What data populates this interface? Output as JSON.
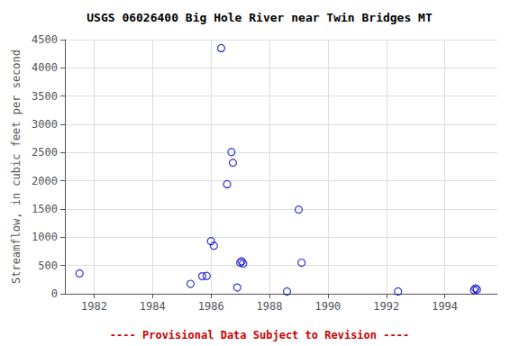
{
  "chart_data": {
    "type": "scatter",
    "title": "USGS 06026400 Big Hole River near Twin Bridges MT",
    "ylabel": "Streamflow, in cubic feet per second",
    "annotations": [
      {
        "text": "---- Provisional Data Subject to Revision ----",
        "color": "#cc0000"
      }
    ],
    "x": [
      1981.5,
      1985.3,
      1985.7,
      1985.85,
      1986.0,
      1986.1,
      1986.35,
      1986.55,
      1986.7,
      1986.75,
      1986.9,
      1987.0,
      1987.05,
      1987.1,
      1988.6,
      1989.0,
      1989.1,
      1992.4,
      1995.0,
      1995.05,
      1995.1
    ],
    "values": [
      360,
      175,
      310,
      315,
      930,
      850,
      4350,
      1940,
      2510,
      2320,
      110,
      550,
      575,
      535,
      40,
      1490,
      550,
      40,
      65,
      95,
      75
    ],
    "color": "#0000cc",
    "marker": "open_circle",
    "xlim": [
      1981.0,
      1995.8
    ],
    "ylim": [
      0,
      4500
    ],
    "xticks": [
      1982,
      1984,
      1986,
      1988,
      1990,
      1992,
      1994
    ],
    "yticks": [
      0,
      500,
      1000,
      1500,
      2000,
      2500,
      3000,
      3500,
      4000,
      4500
    ],
    "grid": true
  }
}
